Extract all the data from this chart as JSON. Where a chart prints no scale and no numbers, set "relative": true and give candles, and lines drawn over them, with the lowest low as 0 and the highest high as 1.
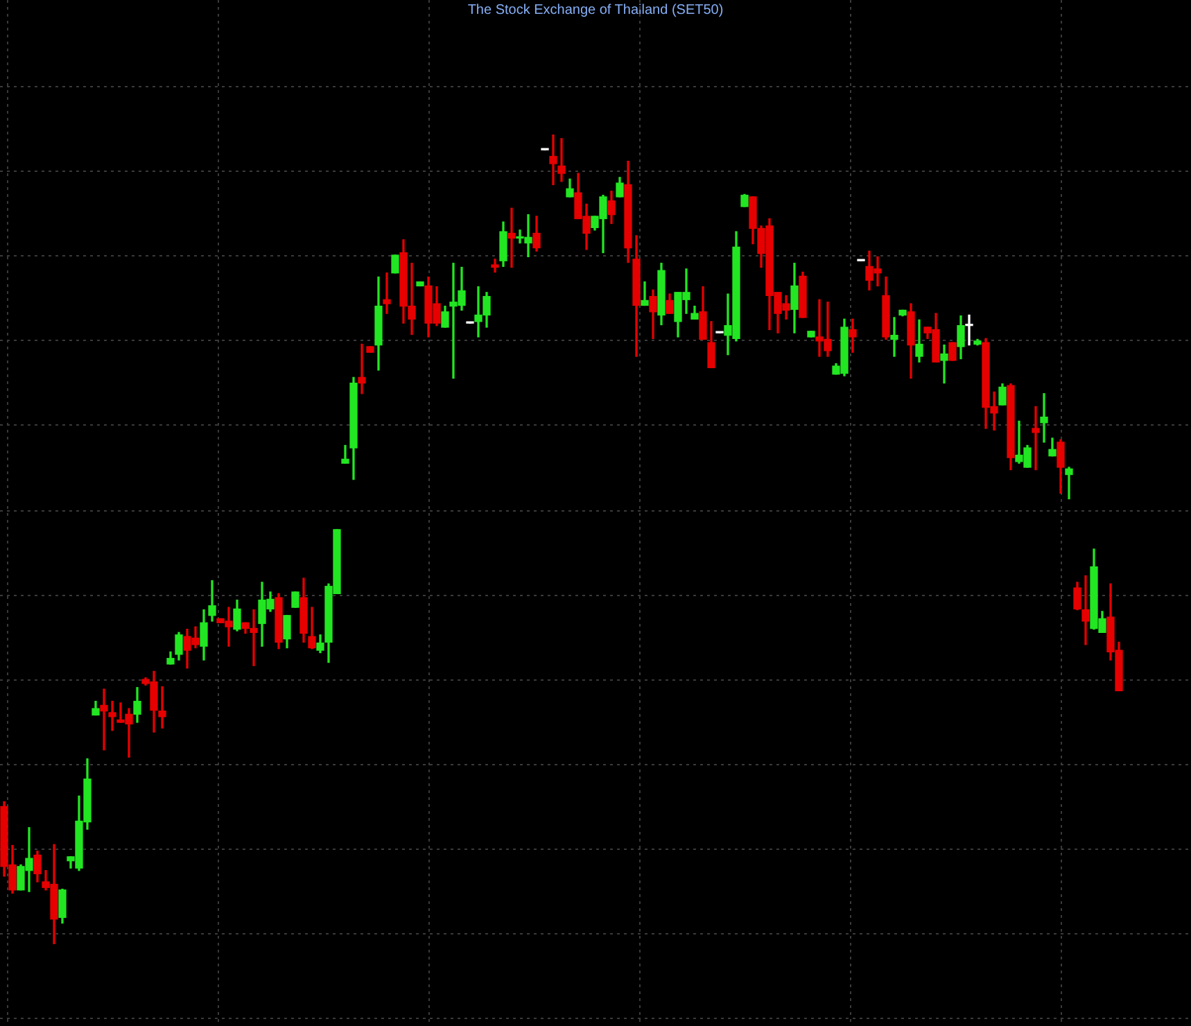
{
  "chart_data": {
    "type": "candlestick",
    "title": "The Stock Exchange of Thailand (SET50)",
    "relative": true,
    "grid": true,
    "categories": [
      null,
      null,
      null,
      null,
      null,
      null,
      null,
      null,
      null,
      null,
      null,
      null,
      null,
      null,
      null,
      null,
      null,
      null,
      null,
      null,
      null,
      null,
      null,
      null,
      null,
      null,
      null,
      null,
      null,
      null,
      null,
      null,
      null,
      null,
      null,
      null,
      null,
      null,
      null,
      null,
      null,
      null,
      null,
      null,
      null,
      null,
      null,
      null,
      null,
      null,
      null,
      null,
      null,
      null,
      null,
      null,
      null,
      null,
      null,
      null,
      null,
      null,
      null,
      null,
      null,
      null,
      null,
      null,
      null,
      null,
      null,
      null,
      null,
      null,
      null,
      null,
      null,
      null,
      null,
      null,
      null,
      null,
      null,
      null,
      null,
      null,
      null,
      null,
      null,
      null,
      null,
      null,
      null,
      null,
      null,
      null,
      null,
      null,
      null,
      null,
      null,
      null,
      null,
      null,
      null,
      null,
      null,
      null,
      null,
      null,
      null,
      null,
      null,
      null,
      null,
      null,
      null,
      null,
      null,
      null,
      null,
      null,
      null,
      null,
      null,
      null,
      null,
      null,
      null,
      null,
      null,
      null,
      null,
      null,
      null
    ],
    "ohlc": [
      [
        0.17,
        0.176,
        0.084,
        0.096
      ],
      [
        0.098,
        0.122,
        0.063,
        0.067
      ],
      [
        0.067,
        0.098,
        0.067,
        0.096
      ],
      [
        0.091,
        0.144,
        0.065,
        0.106
      ],
      [
        0.11,
        0.115,
        0.077,
        0.087
      ],
      [
        0.077,
        0.091,
        0.067,
        0.07
      ],
      [
        0.074,
        0.123,
        0.0,
        0.031
      ],
      [
        0.033,
        0.068,
        0.026,
        0.067
      ],
      [
        0.103,
        0.108,
        0.094,
        0.108
      ],
      [
        0.094,
        0.183,
        0.091,
        0.152
      ],
      [
        0.151,
        0.229,
        0.142,
        0.204
      ],
      [
        0.283,
        0.3,
        0.283,
        0.291
      ],
      [
        0.295,
        0.315,
        0.24,
        0.288
      ],
      [
        0.286,
        0.3,
        0.264,
        0.281
      ],
      [
        0.277,
        0.298,
        0.274,
        0.274
      ],
      [
        0.284,
        0.291,
        0.231,
        0.272
      ],
      [
        0.284,
        0.317,
        0.274,
        0.3
      ],
      [
        0.327,
        0.329,
        0.32,
        0.322
      ],
      [
        0.324,
        0.337,
        0.262,
        0.289
      ],
      [
        0.288,
        0.318,
        0.267,
        0.281
      ],
      [
        0.346,
        0.361,
        0.346,
        0.353
      ],
      [
        0.358,
        0.385,
        0.351,
        0.382
      ],
      [
        0.38,
        0.389,
        0.341,
        0.363
      ],
      [
        0.378,
        0.392,
        0.366,
        0.37
      ],
      [
        0.368,
        0.413,
        0.351,
        0.397
      ],
      [
        0.406,
        0.449,
        0.399,
        0.418
      ],
      [
        0.402,
        0.402,
        0.397,
        0.397
      ],
      [
        0.399,
        0.416,
        0.368,
        0.392
      ],
      [
        0.389,
        0.425,
        0.387,
        0.414
      ],
      [
        0.397,
        0.397,
        0.384,
        0.39
      ],
      [
        0.39,
        0.413,
        0.344,
        0.385
      ],
      [
        0.396,
        0.447,
        0.368,
        0.425
      ],
      [
        0.414,
        0.435,
        0.411,
        0.426
      ],
      [
        0.428,
        0.433,
        0.365,
        0.373
      ],
      [
        0.377,
        0.406,
        0.366,
        0.406
      ],
      [
        0.416,
        0.435,
        0.416,
        0.435
      ],
      [
        0.428,
        0.452,
        0.373,
        0.384
      ],
      [
        0.38,
        0.416,
        0.365,
        0.366
      ],
      [
        0.363,
        0.382,
        0.36,
        0.372
      ],
      [
        0.373,
        0.445,
        0.348,
        0.442
      ],
      [
        0.433,
        0.512,
        0.433,
        0.512
      ],
      [
        0.594,
        0.616,
        0.594,
        0.599
      ],
      [
        0.613,
        0.7,
        0.574,
        0.693
      ],
      [
        0.7,
        0.741,
        0.68,
        0.693
      ],
      [
        0.738,
        0.738,
        0.731,
        0.731
      ],
      [
        0.74,
        0.824,
        0.709,
        0.788
      ],
      [
        0.796,
        0.829,
        0.779,
        0.791
      ],
      [
        0.829,
        0.851,
        0.829,
        0.851
      ],
      [
        0.854,
        0.87,
        0.767,
        0.788
      ],
      [
        0.788,
        0.841,
        0.753,
        0.772
      ],
      [
        0.813,
        0.818,
        0.813,
        0.818
      ],
      [
        0.813,
        0.824,
        0.75,
        0.767
      ],
      [
        0.791,
        0.812,
        0.764,
        0.767
      ],
      [
        0.762,
        0.788,
        0.762,
        0.781
      ],
      [
        0.788,
        0.841,
        0.699,
        0.793
      ],
      [
        0.789,
        0.836,
        0.783,
        0.807
      ],
      [
        0.767,
        0.767,
        0.767,
        0.767
      ],
      [
        0.769,
        0.812,
        0.75,
        0.777
      ],
      [
        0.777,
        0.805,
        0.762,
        0.8
      ],
      [
        0.839,
        0.846,
        0.83,
        0.836
      ],
      [
        0.844,
        0.892,
        0.837,
        0.88
      ],
      [
        0.878,
        0.909,
        0.836,
        0.872
      ],
      [
        0.872,
        0.882,
        0.866,
        0.873
      ],
      [
        0.866,
        0.901,
        0.849,
        0.873
      ],
      [
        0.878,
        0.899,
        0.856,
        0.86
      ],
      [
        0.981,
        0.981,
        0.981,
        0.981
      ],
      [
        0.973,
        1.0,
        0.938,
        0.964
      ],
      [
        0.961,
        0.995,
        0.942,
        0.952
      ],
      [
        0.923,
        0.945,
        0.923,
        0.933
      ],
      [
        0.928,
        0.952,
        0.896,
        0.896
      ],
      [
        0.899,
        0.914,
        0.858,
        0.878
      ],
      [
        0.885,
        0.899,
        0.882,
        0.899
      ],
      [
        0.896,
        0.925,
        0.854,
        0.923
      ],
      [
        0.918,
        0.93,
        0.89,
        0.901
      ],
      [
        0.923,
        0.947,
        0.923,
        0.94
      ],
      [
        0.938,
        0.967,
        0.842,
        0.86
      ],
      [
        0.846,
        0.875,
        0.726,
        0.789
      ],
      [
        0.789,
        0.818,
        0.789,
        0.795
      ],
      [
        0.8,
        0.808,
        0.748,
        0.781
      ],
      [
        0.777,
        0.841,
        0.765,
        0.832
      ],
      [
        0.795,
        0.803,
        0.779,
        0.779
      ],
      [
        0.769,
        0.805,
        0.75,
        0.805
      ],
      [
        0.796,
        0.834,
        0.779,
        0.805
      ],
      [
        0.772,
        0.788,
        0.772,
        0.779
      ],
      [
        0.781,
        0.812,
        0.747,
        0.747
      ],
      [
        0.743,
        0.769,
        0.712,
        0.712
      ],
      [
        0.755,
        0.755,
        0.755,
        0.755
      ],
      [
        0.752,
        0.803,
        0.728,
        0.764
      ],
      [
        0.748,
        0.88,
        0.745,
        0.861
      ],
      [
        0.911,
        0.926,
        0.911,
        0.925
      ],
      [
        0.923,
        0.923,
        0.865,
        0.884
      ],
      [
        0.884,
        0.887,
        0.836,
        0.853
      ],
      [
        0.887,
        0.896,
        0.759,
        0.801
      ],
      [
        0.805,
        0.805,
        0.755,
        0.779
      ],
      [
        0.791,
        0.801,
        0.772,
        0.783
      ],
      [
        0.784,
        0.841,
        0.755,
        0.813
      ],
      [
        0.825,
        0.83,
        0.774,
        0.774
      ],
      [
        0.75,
        0.757,
        0.75,
        0.757
      ],
      [
        0.75,
        0.796,
        0.726,
        0.745
      ],
      [
        0.747,
        0.793,
        0.726,
        0.733
      ],
      [
        0.704,
        0.717,
        0.704,
        0.714
      ],
      [
        0.705,
        0.772,
        0.702,
        0.762
      ],
      [
        0.759,
        0.772,
        0.731,
        0.75
      ],
      [
        0.844,
        0.844,
        0.844,
        0.844
      ],
      [
        0.837,
        0.856,
        0.808,
        0.82
      ],
      [
        0.834,
        0.849,
        0.813,
        0.829
      ],
      [
        0.801,
        0.824,
        0.747,
        0.75
      ],
      [
        0.747,
        0.774,
        0.726,
        0.752
      ],
      [
        0.777,
        0.783,
        0.776,
        0.783
      ],
      [
        0.781,
        0.791,
        0.699,
        0.74
      ],
      [
        0.726,
        0.771,
        0.719,
        0.741
      ],
      [
        0.762,
        0.762,
        0.748,
        0.755
      ],
      [
        0.759,
        0.779,
        0.719,
        0.719
      ],
      [
        0.721,
        0.74,
        0.693,
        0.729
      ],
      [
        0.743,
        0.743,
        0.721,
        0.721
      ],
      [
        0.738,
        0.776,
        0.723,
        0.764
      ],
      [
        0.764,
        0.777,
        0.74,
        0.764
      ],
      [
        0.741,
        0.747,
        0.74,
        0.745
      ],
      [
        0.743,
        0.748,
        0.637,
        0.663
      ],
      [
        0.664,
        0.682,
        0.635,
        0.656
      ],
      [
        0.666,
        0.692,
        0.666,
        0.688
      ],
      [
        0.69,
        0.692,
        0.586,
        0.601
      ],
      [
        0.596,
        0.646,
        0.594,
        0.604
      ],
      [
        0.589,
        0.616,
        0.589,
        0.613
      ],
      [
        0.637,
        0.664,
        0.586,
        0.632
      ],
      [
        0.644,
        0.68,
        0.62,
        0.651
      ],
      [
        0.603,
        0.625,
        0.603,
        0.611
      ],
      [
        0.62,
        0.623,
        0.557,
        0.589
      ],
      [
        0.58,
        0.589,
        0.55,
        0.587
      ],
      [
        0.44,
        0.447,
        0.413,
        0.414
      ],
      [
        0.413,
        0.455,
        0.37,
        0.399
      ],
      [
        0.39,
        0.488,
        0.389,
        0.466
      ],
      [
        0.385,
        0.411,
        0.385,
        0.402
      ],
      [
        0.404,
        0.445,
        0.351,
        0.361
      ],
      [
        0.363,
        0.373,
        0.313,
        0.313
      ]
    ],
    "colors": [
      "#e60000",
      "#e60000",
      "#22e622",
      "#22e622",
      "#e60000",
      "#e60000",
      "#e60000",
      "#22e622",
      "#22e622",
      "#22e622",
      "#22e622",
      "#22e622",
      "#e60000",
      "#e60000",
      "#e60000",
      "#e60000",
      "#22e622",
      "#e60000",
      "#e60000",
      "#e60000",
      "#22e622",
      "#22e622",
      "#e60000",
      "#e60000",
      "#22e622",
      "#22e622",
      "#e60000",
      "#e60000",
      "#22e622",
      "#e60000",
      "#e60000",
      "#22e622",
      "#22e622",
      "#e60000",
      "#22e622",
      "#22e622",
      "#e60000",
      "#e60000",
      "#22e622",
      "#22e622",
      "#22e622",
      "#22e622",
      "#22e622",
      "#e60000",
      "#e60000",
      "#22e622",
      "#e60000",
      "#22e622",
      "#e60000",
      "#e60000",
      "#22e622",
      "#e60000",
      "#e60000",
      "#22e622",
      "#22e622",
      "#22e622",
      "#ffffff",
      "#22e622",
      "#22e622",
      "#e60000",
      "#22e622",
      "#e60000",
      "#22e622",
      "#22e622",
      "#e60000",
      "#ffffff",
      "#e60000",
      "#e60000",
      "#22e622",
      "#e60000",
      "#e60000",
      "#22e622",
      "#22e622",
      "#e60000",
      "#22e622",
      "#e60000",
      "#e60000",
      "#22e622",
      "#e60000",
      "#22e622",
      "#e60000",
      "#22e622",
      "#22e622",
      "#22e622",
      "#e60000",
      "#e60000",
      "#ffffff",
      "#22e622",
      "#22e622",
      "#22e622",
      "#e60000",
      "#e60000",
      "#e60000",
      "#e60000",
      "#e60000",
      "#22e622",
      "#e60000",
      "#22e622",
      "#e60000",
      "#e60000",
      "#22e622",
      "#22e622",
      "#e60000",
      "#ffffff",
      "#e60000",
      "#e60000",
      "#e60000",
      "#22e622",
      "#22e622",
      "#e60000",
      "#22e622",
      "#e60000",
      "#e60000",
      "#22e622",
      "#e60000",
      "#22e622",
      "#ffffff",
      "#22e622",
      "#e60000",
      "#e60000",
      "#22e622",
      "#e60000",
      "#22e622",
      "#22e622",
      "#e60000",
      "#22e622",
      "#22e622",
      "#e60000",
      "#22e622",
      "#e60000",
      "#e60000",
      "#22e622",
      "#22e622",
      "#e60000",
      "#e60000"
    ]
  }
}
